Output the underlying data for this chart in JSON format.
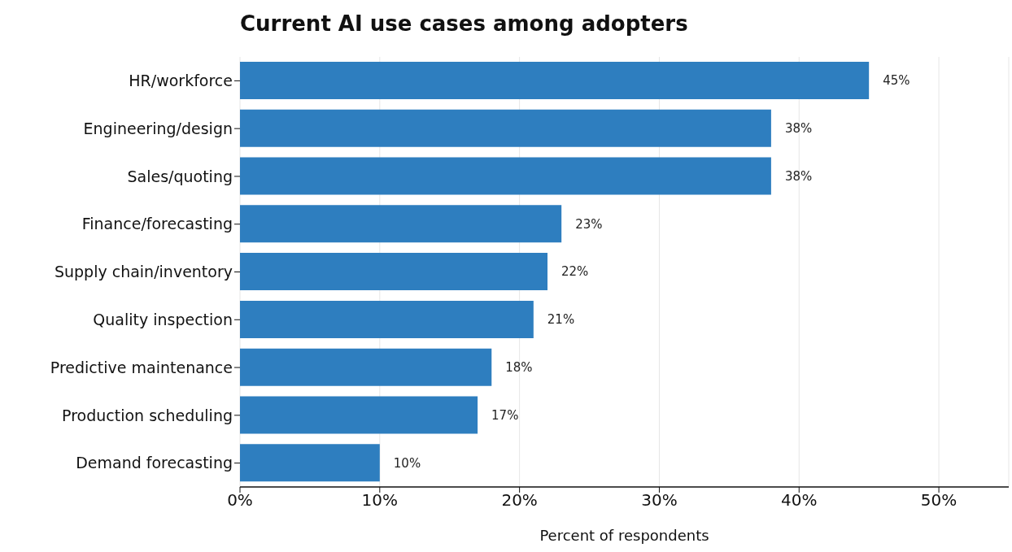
{
  "chart_data": {
    "type": "bar",
    "orientation": "horizontal",
    "title": "Current AI use cases among adopters",
    "xlabel": "Percent of respondents",
    "categories": [
      "HR/workforce",
      "Engineering/design",
      "Sales/quoting",
      "Finance/forecasting",
      "Supply chain/inventory",
      "Quality inspection",
      "Predictive maintenance",
      "Production scheduling",
      "Demand forecasting"
    ],
    "values": [
      45,
      38,
      38,
      23,
      22,
      21,
      18,
      17,
      10
    ],
    "value_labels": [
      "45%",
      "38%",
      "38%",
      "23%",
      "22%",
      "21%",
      "18%",
      "17%",
      "10%"
    ],
    "color": "#2e7ebf",
    "xlim": [
      0,
      55
    ],
    "xticks": [
      {
        "value": 0,
        "label": "0%"
      },
      {
        "value": 10,
        "label": "10%"
      },
      {
        "value": 20,
        "label": "20%"
      },
      {
        "value": 30,
        "label": "30%"
      },
      {
        "value": 40,
        "label": "40%"
      },
      {
        "value": 50,
        "label": "50%"
      }
    ],
    "grid": "x",
    "legend": false
  }
}
